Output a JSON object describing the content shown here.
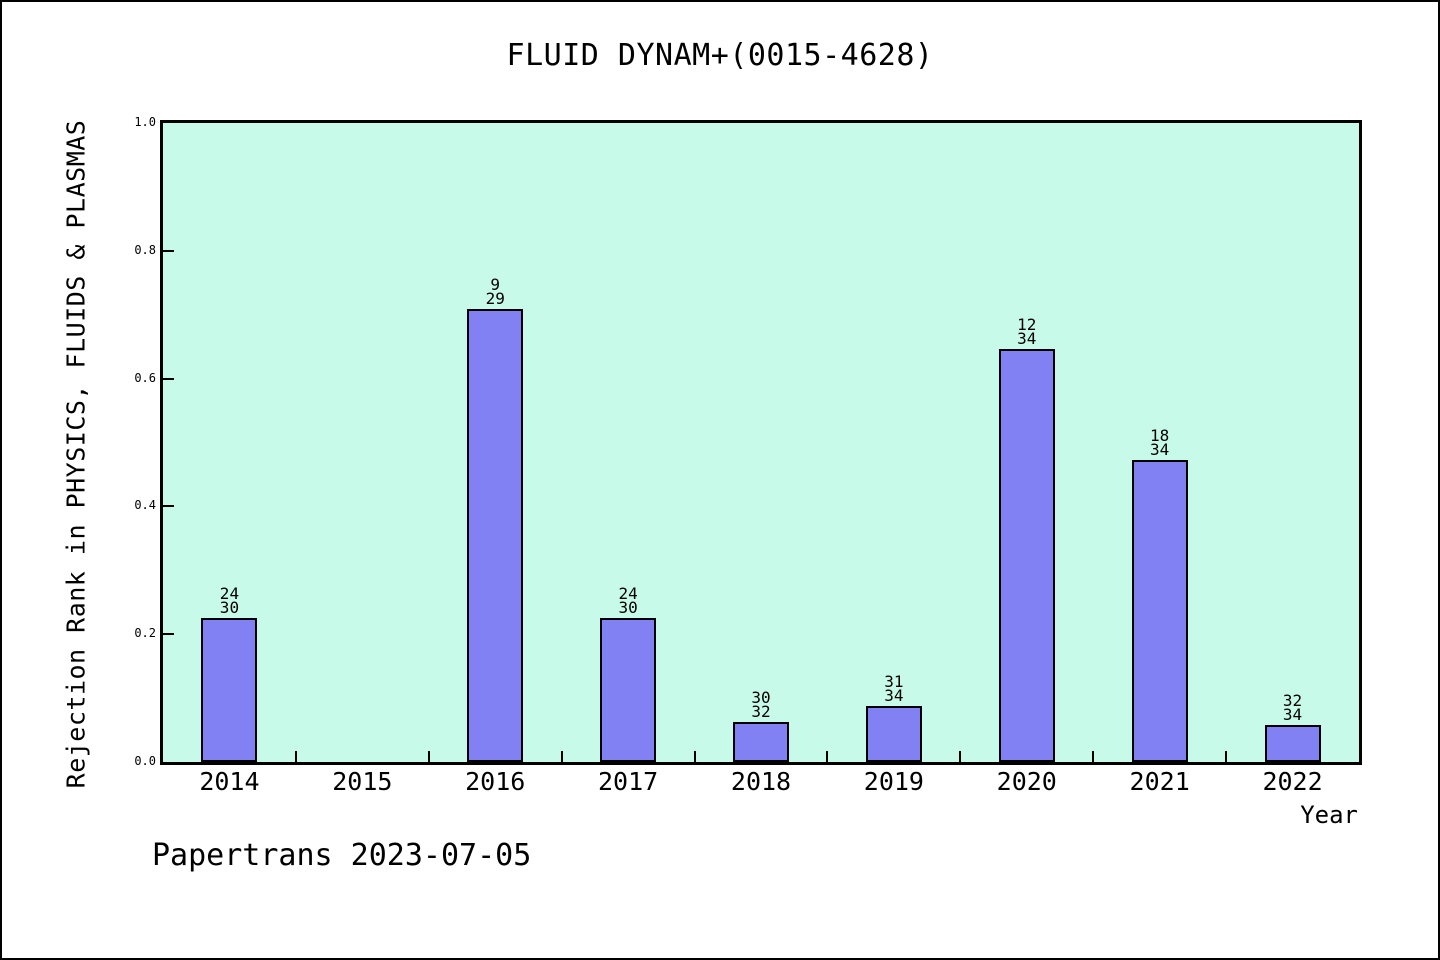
{
  "title": "FLUID DYNAM+(0015-4628)",
  "footer": {
    "caption": "Papertrans 2023-07-05"
  },
  "colors": {
    "plot_background": "#c7fae9",
    "bar_fill": "#8181f4",
    "bar_edge": "#000000",
    "frame": "#000000",
    "page_background": "#ffffff"
  },
  "chart_data": {
    "type": "bar",
    "title": "FLUID DYNAM+(0015-4628)",
    "xlabel": "Year",
    "ylabel": "Rejection Rank in PHYSICS, FLUIDS & PLASMAS",
    "ylim": [
      0.0,
      1.0
    ],
    "yticks": [
      0.0,
      0.2,
      0.4,
      0.6,
      0.8,
      1.0
    ],
    "ytick_labels": [
      "0.0",
      "0.2",
      "0.4",
      "0.6",
      "0.8",
      "1.0"
    ],
    "grid": false,
    "legend": "none",
    "categories": [
      "2014",
      "2015",
      "2016",
      "2017",
      "2018",
      "2019",
      "2020",
      "2021",
      "2022"
    ],
    "values": [
      0.225,
      null,
      0.709,
      0.225,
      0.063,
      0.088,
      0.647,
      0.472,
      0.058
    ],
    "bar_labels": [
      [
        "24",
        "30"
      ],
      null,
      [
        "9",
        "29"
      ],
      [
        "24",
        "30"
      ],
      [
        "30",
        "32"
      ],
      [
        "31",
        "34"
      ],
      [
        "12",
        "34"
      ],
      [
        "18",
        "34"
      ],
      [
        "32",
        "34"
      ]
    ]
  }
}
